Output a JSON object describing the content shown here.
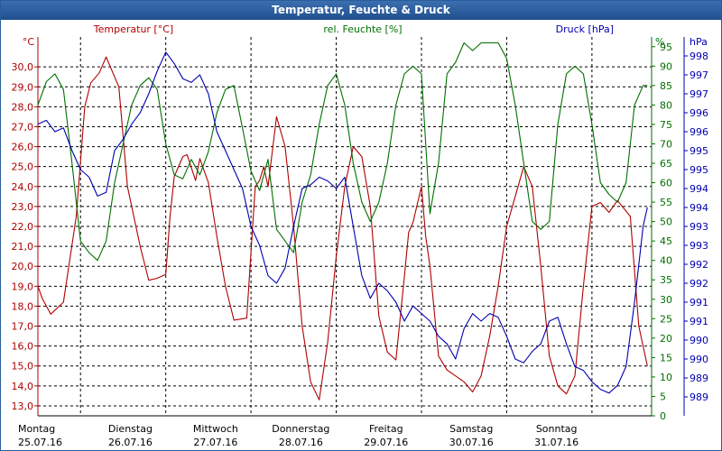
{
  "window": {
    "title": "Temperatur, Feuchte & Druck"
  },
  "colors": {
    "temperature": "#b00000",
    "humidity": "#007000",
    "pressure": "#0000b0",
    "grid": "#000000"
  },
  "chart_data": {
    "type": "line",
    "title": "Temperatur, Feuchte & Druck",
    "grid": true,
    "x_labels": [
      {
        "day": "Montag",
        "date": "25.07.16"
      },
      {
        "day": "Dienstag",
        "date": "26.07.16"
      },
      {
        "day": "Mittwoch",
        "date": "27.07.16"
      },
      {
        "day": "Donnerstag",
        "date": "28.07.16"
      },
      {
        "day": "Freitag",
        "date": "29.07.16"
      },
      {
        "day": "Samstag",
        "date": "30.07.16"
      },
      {
        "day": "Sonntag",
        "date": "31.07.16"
      }
    ],
    "x_range_days": [
      0,
      7.2
    ],
    "axes": {
      "left": {
        "label": "Temperatur [°C]",
        "unit": "°C",
        "range": [
          12.5,
          31.5
        ],
        "ticks": [
          "30,0",
          "29,0",
          "28,0",
          "27,0",
          "26,0",
          "25,0",
          "24,0",
          "23,0",
          "22,0",
          "21,0",
          "20,0",
          "19,0",
          "18,0",
          "17,0",
          "16,0",
          "15,0",
          "14,0",
          "13,0"
        ],
        "tick_values": [
          30,
          29,
          28,
          27,
          26,
          25,
          24,
          23,
          22,
          21,
          20,
          19,
          18,
          17,
          16,
          15,
          14,
          13
        ]
      },
      "right1": {
        "label": "rel. Feuchte [%]",
        "unit": "%",
        "range": [
          0,
          97.5
        ],
        "ticks": [
          "95",
          "90",
          "85",
          "80",
          "75",
          "70",
          "65",
          "60",
          "55",
          "50",
          "45",
          "40",
          "35",
          "30",
          "25",
          "20",
          "15",
          "10",
          "5",
          "0"
        ],
        "tick_values": [
          95,
          90,
          85,
          80,
          75,
          70,
          65,
          60,
          55,
          50,
          45,
          40,
          35,
          30,
          25,
          20,
          15,
          10,
          5,
          0
        ]
      },
      "right2": {
        "label": "Druck [hPa]",
        "unit": "hPa",
        "range": [
          988.5,
          998.5
        ],
        "ticks": [
          "998",
          "997",
          "997",
          "996",
          "996",
          "995",
          "995",
          "994",
          "994",
          "993",
          "993",
          "992",
          "992",
          "991",
          "991",
          "990",
          "990",
          "989",
          "989"
        ],
        "tick_values": [
          998,
          997.5,
          997,
          996.5,
          996,
          995.5,
          995,
          994.5,
          994,
          993.5,
          993,
          992.5,
          992,
          991.5,
          991,
          990.5,
          990,
          989.5,
          989
        ]
      }
    },
    "series": [
      {
        "name": "Temperatur [°C]",
        "axis": "left",
        "x": [
          0,
          0.05,
          0.15,
          0.3,
          0.45,
          0.55,
          0.62,
          0.72,
          0.8,
          0.95,
          1.05,
          1.2,
          1.3,
          1.4,
          1.5,
          1.55,
          1.6,
          1.7,
          1.75,
          1.85,
          1.9,
          2.0,
          2.1,
          2.2,
          2.3,
          2.45,
          2.55,
          2.6,
          2.65,
          2.7,
          2.8,
          2.9,
          3.0,
          3.1,
          3.2,
          3.3,
          3.4,
          3.5,
          3.6,
          3.7,
          3.8,
          3.9,
          4.0,
          4.1,
          4.2,
          4.3,
          4.35,
          4.4,
          4.5,
          4.55,
          4.6,
          4.7,
          4.8,
          4.9,
          5.0,
          5.1,
          5.2,
          5.3,
          5.4,
          5.5,
          5.6,
          5.7,
          5.8,
          5.9,
          6.0,
          6.1,
          6.2,
          6.3,
          6.4,
          6.5,
          6.6,
          6.7,
          6.8,
          6.95,
          7.05,
          7.15
        ],
        "values": [
          19.0,
          18.4,
          17.6,
          18.2,
          22.5,
          28.0,
          29.2,
          29.7,
          30.5,
          29.0,
          24.0,
          21.0,
          19.3,
          19.4,
          19.6,
          22.5,
          24.5,
          25.5,
          25.6,
          24.3,
          25.4,
          24.2,
          21.5,
          19.0,
          17.3,
          17.4,
          24.0,
          24.3,
          25.0,
          24.0,
          27.5,
          26.0,
          22.0,
          17.0,
          14.2,
          13.3,
          16.2,
          20.5,
          24.0,
          26.0,
          25.5,
          23.0,
          17.5,
          15.7,
          15.3,
          19.5,
          21.7,
          22.2,
          24.0,
          21.5,
          20.0,
          15.5,
          14.8,
          14.5,
          14.2,
          13.7,
          14.5,
          16.5,
          19.0,
          22.0,
          23.5,
          25.0,
          24.0,
          20.0,
          15.5,
          14.0,
          13.6,
          14.5,
          19.0,
          23.0,
          23.2,
          22.7,
          23.3,
          22.5,
          17.0,
          15.0
        ]
      },
      {
        "name": "rel. Feuchte [%]",
        "axis": "right1",
        "x": [
          0,
          0.1,
          0.2,
          0.3,
          0.4,
          0.5,
          0.6,
          0.7,
          0.8,
          0.9,
          1.0,
          1.1,
          1.2,
          1.3,
          1.4,
          1.5,
          1.6,
          1.7,
          1.8,
          1.9,
          2.0,
          2.1,
          2.2,
          2.3,
          2.4,
          2.5,
          2.6,
          2.7,
          2.8,
          2.9,
          3.0,
          3.1,
          3.2,
          3.3,
          3.4,
          3.5,
          3.6,
          3.7,
          3.8,
          3.9,
          4.0,
          4.1,
          4.2,
          4.3,
          4.4,
          4.5,
          4.6,
          4.7,
          4.8,
          4.9,
          5.0,
          5.1,
          5.2,
          5.3,
          5.4,
          5.5,
          5.6,
          5.7,
          5.8,
          5.9,
          6.0,
          6.1,
          6.2,
          6.3,
          6.4,
          6.5,
          6.6,
          6.7,
          6.8,
          6.9,
          7.0,
          7.1,
          7.15
        ],
        "values": [
          80,
          86,
          88,
          84,
          65,
          45,
          42,
          40,
          45,
          60,
          70,
          80,
          85,
          87,
          84,
          70,
          62,
          61,
          66,
          62,
          68,
          78,
          84,
          85,
          74,
          63,
          58,
          66,
          48,
          45,
          42,
          55,
          62,
          75,
          85,
          88,
          80,
          65,
          55,
          50,
          55,
          65,
          80,
          88,
          90,
          88,
          52,
          65,
          88,
          91,
          96,
          94,
          96,
          96,
          96,
          92,
          80,
          65,
          50,
          48,
          50,
          75,
          88,
          90,
          88,
          75,
          60,
          57,
          55,
          60,
          80,
          85,
          85
        ]
      },
      {
        "name": "Druck [hPa]",
        "axis": "right2",
        "x": [
          0,
          0.1,
          0.2,
          0.3,
          0.4,
          0.5,
          0.6,
          0.7,
          0.8,
          0.9,
          1.0,
          1.1,
          1.2,
          1.3,
          1.4,
          1.5,
          1.6,
          1.7,
          1.8,
          1.9,
          2.0,
          2.1,
          2.2,
          2.3,
          2.4,
          2.5,
          2.6,
          2.7,
          2.8,
          2.9,
          3.0,
          3.1,
          3.2,
          3.3,
          3.4,
          3.5,
          3.6,
          3.7,
          3.8,
          3.9,
          4.0,
          4.1,
          4.2,
          4.3,
          4.4,
          4.5,
          4.6,
          4.7,
          4.8,
          4.9,
          5.0,
          5.1,
          5.2,
          5.3,
          5.4,
          5.5,
          5.6,
          5.7,
          5.8,
          5.9,
          6.0,
          6.1,
          6.2,
          6.3,
          6.4,
          6.5,
          6.6,
          6.7,
          6.8,
          6.9,
          7.0,
          7.1,
          7.15
        ],
        "values": [
          996.2,
          996.3,
          996.0,
          996.1,
          995.5,
          995.0,
          994.8,
          994.3,
          994.4,
          995.5,
          995.8,
          996.2,
          996.5,
          997.0,
          997.6,
          998.1,
          997.8,
          997.4,
          997.3,
          997.5,
          997.0,
          996.0,
          995.5,
          995.0,
          994.5,
          993.5,
          993.0,
          992.2,
          992.0,
          992.4,
          993.5,
          994.5,
          994.6,
          994.8,
          994.7,
          994.5,
          994.8,
          993.5,
          992.2,
          991.6,
          992.0,
          991.8,
          991.5,
          991.0,
          991.4,
          991.2,
          991.0,
          990.6,
          990.4,
          990.0,
          990.8,
          991.2,
          991.0,
          991.2,
          991.1,
          990.6,
          990.0,
          989.9,
          990.2,
          990.4,
          991.0,
          991.1,
          990.4,
          989.8,
          989.7,
          989.4,
          989.2,
          989.1,
          989.3,
          989.8,
          991.5,
          993.5,
          994.0
        ]
      }
    ]
  }
}
